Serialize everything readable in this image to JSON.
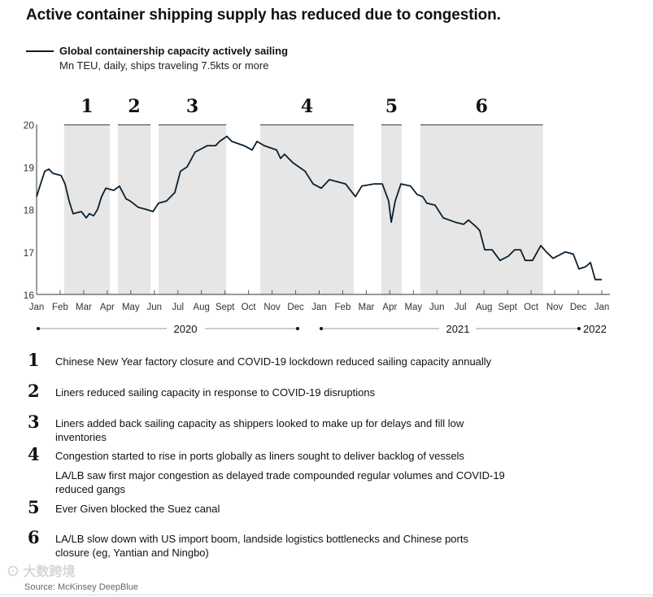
{
  "title": "Active container shipping supply has reduced due to congestion.",
  "chart_data": {
    "type": "line",
    "title": "Active container shipping supply has reduced due to congestion.",
    "legend": {
      "label": "Global containership capacity actively sailing",
      "sublabel": "Mn TEU, daily, ships traveling 7.5kts or more",
      "placement": "top-left"
    },
    "ylim": [
      16,
      20
    ],
    "yticks": [
      "16",
      "17",
      "18",
      "19",
      "20"
    ],
    "xlim": [
      0,
      24
    ],
    "xunit": "months since Jan 2020",
    "xticks": [
      "Jan",
      "Feb",
      "Mar",
      "Apr",
      "May",
      "Jun",
      "Jul",
      "Aug",
      "Sept",
      "Oct",
      "Nov",
      "Dec",
      "Jan",
      "Feb",
      "Mar",
      "Apr",
      "May",
      "Jun",
      "Jul",
      "Aug",
      "Sept",
      "Oct",
      "Nov",
      "Dec",
      "Jan"
    ],
    "years": [
      {
        "label": "2020",
        "from": 0,
        "to": 11
      },
      {
        "label": "2021",
        "from": 12,
        "to": 23
      },
      {
        "label": "2022",
        "from": 24,
        "to": 24
      }
    ],
    "series": [
      {
        "name": "Global containership capacity actively sailing",
        "color": "#0b1f2e",
        "x": [
          0,
          0.17,
          0.35,
          0.52,
          0.69,
          1.04,
          1.21,
          1.38,
          1.55,
          1.9,
          2.11,
          2.24,
          2.42,
          2.59,
          2.76,
          2.94,
          3.28,
          3.52,
          3.8,
          3.97,
          4.32,
          4.66,
          4.94,
          5.18,
          5.52,
          5.87,
          6.11,
          6.39,
          6.73,
          7.25,
          7.6,
          7.77,
          8.08,
          8.29,
          8.81,
          9.15,
          9.36,
          9.67,
          10.19,
          10.36,
          10.53,
          10.88,
          11.4,
          11.74,
          12.09,
          12.43,
          12.78,
          13.12,
          13.54,
          13.81,
          14.33,
          14.68,
          14.95,
          15.06,
          15.23,
          15.47,
          15.88,
          16.16,
          16.4,
          16.57,
          16.92,
          17.27,
          17.78,
          18.13,
          18.34,
          18.65,
          18.82,
          19.03,
          19.34,
          19.68,
          20.03,
          20.3,
          20.55,
          20.75,
          21.06,
          21.41,
          21.65,
          21.93,
          22.45,
          22.79,
          23.03,
          23.31,
          23.52,
          23.72,
          24
        ],
        "y": [
          18.3,
          18.6,
          18.9,
          18.95,
          18.85,
          18.8,
          18.6,
          18.2,
          17.9,
          17.95,
          17.8,
          17.9,
          17.85,
          18.0,
          18.3,
          18.5,
          18.45,
          18.55,
          18.25,
          18.2,
          18.05,
          18.0,
          17.95,
          18.15,
          18.2,
          18.4,
          18.9,
          19.0,
          19.35,
          19.5,
          19.5,
          19.6,
          19.72,
          19.6,
          19.5,
          19.4,
          19.6,
          19.5,
          19.4,
          19.2,
          19.3,
          19.1,
          18.9,
          18.6,
          18.5,
          18.7,
          18.65,
          18.6,
          18.3,
          18.55,
          18.6,
          18.6,
          18.2,
          17.7,
          18.2,
          18.6,
          18.55,
          18.35,
          18.3,
          18.15,
          18.1,
          17.8,
          17.7,
          17.65,
          17.75,
          17.6,
          17.5,
          17.05,
          17.05,
          16.8,
          16.9,
          17.05,
          17.05,
          16.8,
          16.8,
          17.15,
          17.0,
          16.85,
          17.0,
          16.95,
          16.6,
          16.65,
          16.75,
          16.35,
          16.35
        ]
      }
    ],
    "annotations": [
      {
        "label": "1",
        "from": 1.17,
        "to": 3.11
      },
      {
        "label": "2",
        "from": 3.45,
        "to": 4.84
      },
      {
        "label": "3",
        "from": 5.18,
        "to": 8.05
      },
      {
        "label": "4",
        "from": 9.5,
        "to": 13.47
      },
      {
        "label": "5",
        "from": 14.64,
        "to": 15.5
      },
      {
        "label": "6",
        "from": 16.3,
        "to": 21.5
      }
    ],
    "shade_color": "#e6e6e6"
  },
  "notes": [
    {
      "num": "1",
      "lines": [
        "Chinese New Year factory closure and COVID-19 lockdown reduced sailing capacity annually"
      ]
    },
    {
      "num": "2",
      "lines": [
        "Liners reduced sailing capacity in response to COVID-19 disruptions"
      ]
    },
    {
      "num": "3",
      "lines": [
        "Liners added back sailing capacity as shippers looked to make up for delays and fill low inventories"
      ]
    },
    {
      "num": "4",
      "lines": [
        "Congestion started to rise in ports globally as liners sought to deliver backlog of vessels",
        "LA/LB saw first major congestion as delayed trade compounded regular volumes and COVID-19 reduced gangs"
      ]
    },
    {
      "num": "5",
      "lines": [
        "Ever Given blocked the Suez canal"
      ]
    },
    {
      "num": "6",
      "lines": [
        "LA/LB slow down with US import boom, landside logistics bottlenecks and Chinese ports closure (eg, Yantian and Ningbo)"
      ]
    }
  ],
  "source": "Source: McKinsey DeepBlue",
  "watermark": "大数跨境"
}
